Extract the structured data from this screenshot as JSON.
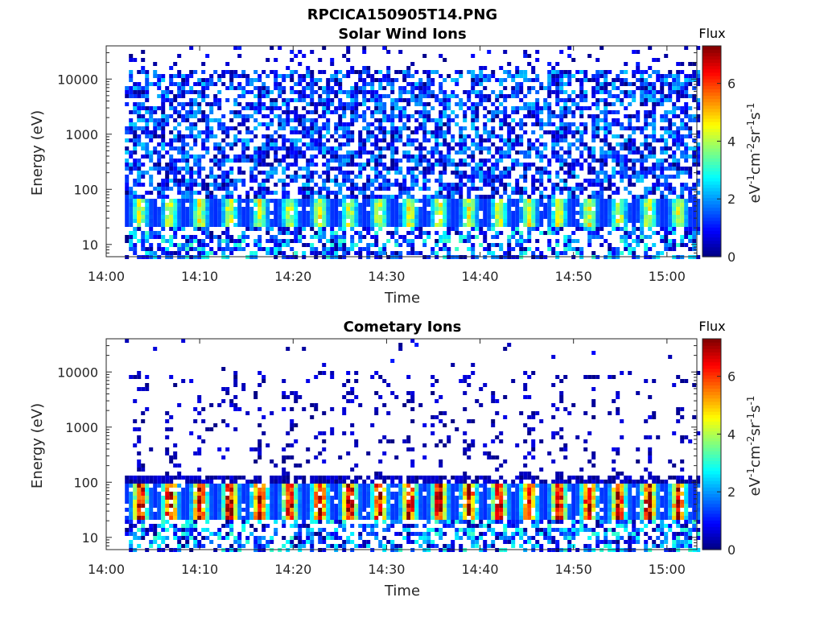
{
  "figure": {
    "title": "RPCICA150905T14.PNG"
  },
  "chart_data": [
    {
      "type": "heatmap",
      "title": "Solar Wind Ions",
      "xlabel": "Time",
      "ylabel": "Energy (eV)",
      "x_ticks": [
        "14:00",
        "14:10",
        "14:20",
        "14:30",
        "14:40",
        "14:50",
        "15:00"
      ],
      "y_ticks": [
        "10",
        "100",
        "1000",
        "10000"
      ],
      "y_scale": "log",
      "ylim": [
        6,
        40000
      ],
      "data_start": "14:02",
      "data_end": "15:03",
      "colorbar": {
        "title": "Flux",
        "label": "eV-1cm-2sr-1s-1",
        "ticks": [
          "0",
          "2",
          "4",
          "6"
        ],
        "range": [
          0,
          7.3
        ],
        "colormap": "jet"
      },
      "features": {
        "background_band_energy_eV": [
          30,
          15000
        ],
        "background_flux": 1.0,
        "peak_band_energy_eV": [
          20,
          70
        ],
        "peak_flux": 4.3,
        "sweep_period_min": 3.2
      }
    },
    {
      "type": "heatmap",
      "title": "Cometary Ions",
      "xlabel": "Time",
      "ylabel": "Energy (eV)",
      "x_ticks": [
        "14:00",
        "14:10",
        "14:20",
        "14:30",
        "14:40",
        "14:50",
        "15:00"
      ],
      "y_ticks": [
        "10",
        "100",
        "1000",
        "10000"
      ],
      "y_scale": "log",
      "ylim": [
        6,
        40000
      ],
      "data_start": "14:02",
      "data_end": "15:03",
      "colorbar": {
        "title": "Flux",
        "label": "eV-1cm-2sr-1s-1",
        "ticks": [
          "0",
          "2",
          "4",
          "6"
        ],
        "range": [
          0,
          7.3
        ],
        "colormap": "jet"
      },
      "features": {
        "background_band_energy_eV": [
          120,
          11000
        ],
        "background_flux": 0.5,
        "peak_band_energy_eV": [
          20,
          90
        ],
        "peak_flux": 6.8,
        "sweep_period_min": 3.2
      }
    }
  ]
}
